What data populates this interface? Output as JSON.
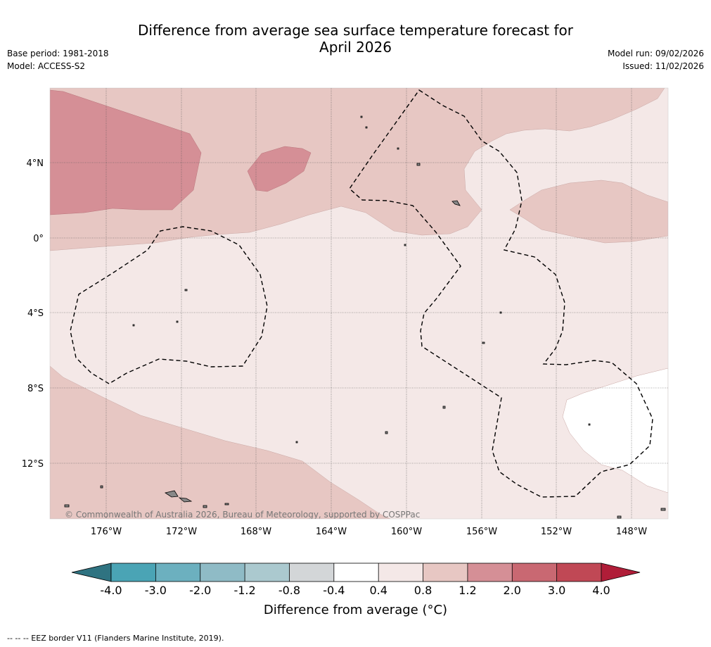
{
  "header": {
    "title_line1": "Difference from average sea surface temperature forecast for",
    "title_line2": "April 2026",
    "base_period": "Base period: 1981-2018",
    "model": "Model: ACCESS-S2",
    "model_run": "Model run: 09/02/2026",
    "issued": "Issued: 11/02/2026"
  },
  "map": {
    "copyright": "© Commonwealth of Australia 2026, Bureau of Meteorology, supported by COSPPac",
    "lat_labels": [
      "4°N",
      "0°",
      "4°S",
      "8°S",
      "12°S"
    ],
    "lon_labels": [
      "176°W",
      "172°W",
      "168°W",
      "164°W",
      "160°W",
      "156°W",
      "152°W",
      "148°W"
    ]
  },
  "colorbar": {
    "ticks": [
      "-4.0",
      "-3.0",
      "-2.0",
      "-1.2",
      "-0.8",
      "-0.4",
      "0.4",
      "0.8",
      "1.2",
      "2.0",
      "3.0",
      "4.0"
    ],
    "colors": [
      "#4aa4b5",
      "#6cb0bf",
      "#8fbbc6",
      "#abc9cf",
      "#d3d6d8",
      "#ffffff",
      "#f4e8e7",
      "#e7c7c3",
      "#d58f96",
      "#c96872",
      "#c04855"
    ],
    "low_color": "#2f7381",
    "high_color": "#b01d38",
    "label": "Difference from average (°C)"
  },
  "legend": {
    "eez_note": "--  --  -- EEZ border V11 (Flanders Marine Institute, 2019)."
  }
}
